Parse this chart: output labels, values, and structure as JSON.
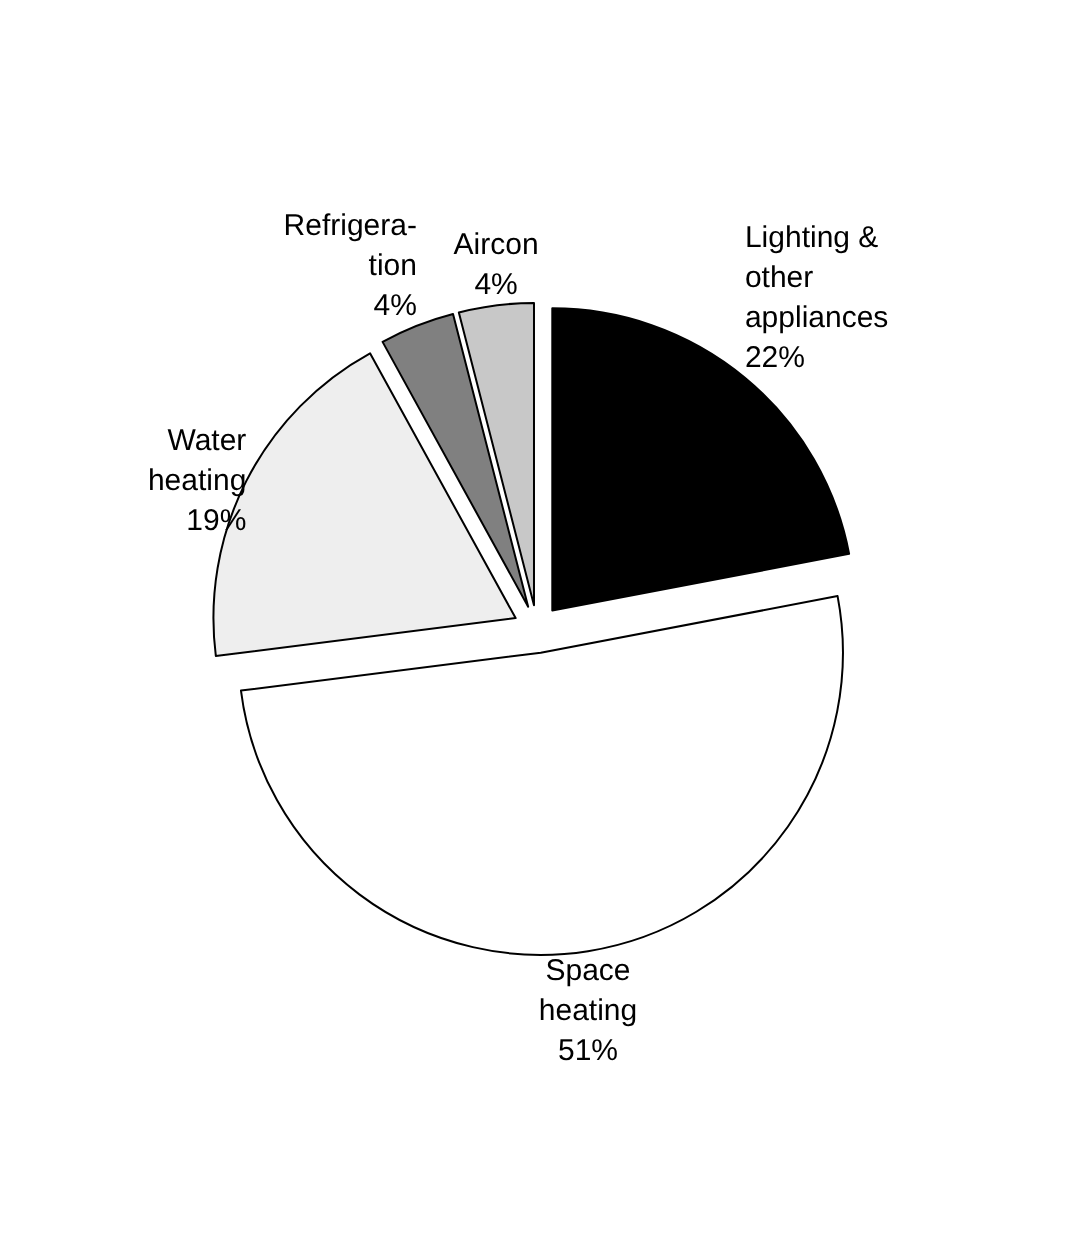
{
  "chart_data": {
    "type": "pie",
    "categories": [
      "Lighting &\nother\nappliances",
      "Space\nheating",
      "Water\nheating",
      "Refrigera-\ntion",
      "Aircon"
    ],
    "values": [
      22,
      51,
      19,
      4,
      4
    ],
    "colors": [
      "#000000",
      "#ffffff",
      "#eeeeee",
      "#808080",
      "#c8c8c8"
    ],
    "value_labels": [
      "22%",
      "51%",
      "19%",
      "4%",
      "4%"
    ]
  }
}
